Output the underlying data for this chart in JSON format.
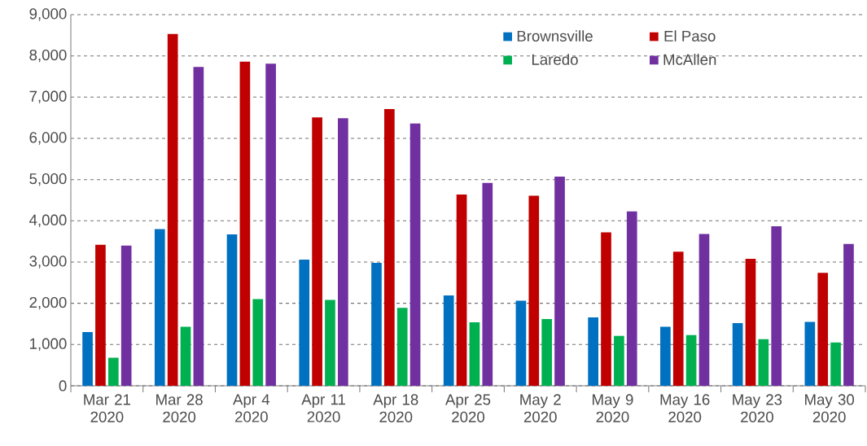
{
  "chart_data": {
    "type": "bar",
    "categories": [
      "Mar 21 2020",
      "Mar 28 2020",
      "Apr 4 2020",
      "Apr 11 2020",
      "Apr 18 2020",
      "Apr 25 2020",
      "May 2 2020",
      "May 9 2020",
      "May 16 2020",
      "May 23 2020",
      "May 30 2020"
    ],
    "series": [
      {
        "name": "Brownsville",
        "color": "#0070c0",
        "values": [
          1300,
          3800,
          3670,
          3060,
          2980,
          2190,
          2060,
          1660,
          1430,
          1520,
          1550
        ]
      },
      {
        "name": "El Paso",
        "color": "#c00000",
        "values": [
          3420,
          8530,
          7860,
          6510,
          6710,
          4640,
          4610,
          3720,
          3250,
          3080,
          2740
        ]
      },
      {
        "name": "Laredo",
        "color": "#00b050",
        "values": [
          680,
          1430,
          2100,
          2080,
          1890,
          1540,
          1620,
          1210,
          1230,
          1130,
          1050
        ]
      },
      {
        "name": "McAllen",
        "color": "#7030a0",
        "values": [
          3400,
          7730,
          7810,
          6490,
          6360,
          4920,
          5070,
          4230,
          3680,
          3870,
          3440
        ]
      }
    ],
    "ylim": [
      0,
      9000
    ],
    "yticks": [
      {
        "value": 0,
        "label": "0"
      },
      {
        "value": 1000,
        "label": "1,000"
      },
      {
        "value": 2000,
        "label": "2,000"
      },
      {
        "value": 3000,
        "label": "3,000"
      },
      {
        "value": 4000,
        "label": "4,000"
      },
      {
        "value": 5000,
        "label": "5,000"
      },
      {
        "value": 6000,
        "label": "6,000"
      },
      {
        "value": 7000,
        "label": "7,000"
      },
      {
        "value": 8000,
        "label": "8,000"
      },
      {
        "value": 9000,
        "label": "9,000"
      }
    ],
    "grid": "y",
    "legend": "top right"
  }
}
